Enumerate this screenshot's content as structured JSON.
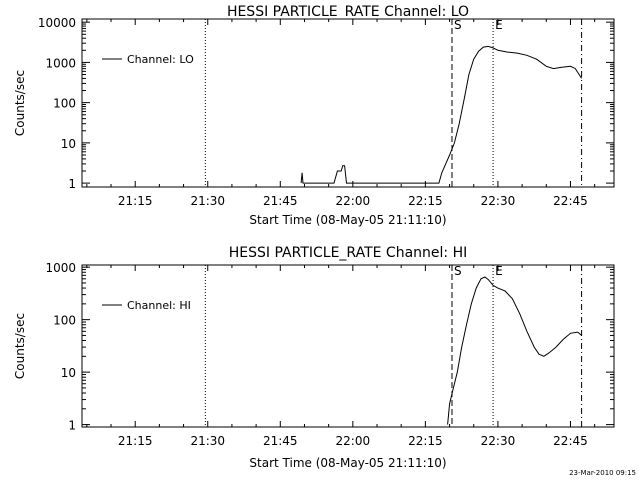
{
  "footer": {
    "timestamp": "23-Mar-2010 09:15"
  },
  "chart_data": [
    {
      "type": "line",
      "title": "HESSI PARTICLE_RATE Channel: LO",
      "xlabel": "Start Time (08-May-05 21:11:10)",
      "ylabel": "Counts/sec",
      "x_tick_labels": [
        "21:15",
        "21:30",
        "21:45",
        "22:00",
        "22:15",
        "22:30",
        "22:45"
      ],
      "x_tick_minutes": [
        15,
        30,
        45,
        60,
        75,
        90,
        105
      ],
      "xlim_minutes": [
        4,
        114
      ],
      "y_scale": "log",
      "y_tick_labels": [
        "1",
        "10",
        "100",
        "1000",
        "10000"
      ],
      "y_tick_values": [
        1,
        10,
        100,
        1000,
        10000
      ],
      "ylim": [
        0.8,
        12000
      ],
      "legend": {
        "entries": [
          "Channel: LO"
        ],
        "placement": "top-left"
      },
      "markers": [
        {
          "label": "",
          "minute": 29.5,
          "style": "dotted"
        },
        {
          "label": "S",
          "minute": 80.5,
          "style": "dashed"
        },
        {
          "label": "E",
          "minute": 89.0,
          "style": "dotted"
        },
        {
          "label": "",
          "minute": 107.3,
          "style": "dashdot"
        }
      ],
      "series": [
        {
          "name": "Channel: LO",
          "points": [
            [
              49.3,
              1
            ],
            [
              49.5,
              1.8
            ],
            [
              49.7,
              1
            ],
            [
              56.1,
              1
            ],
            [
              56.8,
              2.0
            ],
            [
              57.6,
              2.0
            ],
            [
              57.9,
              2.7
            ],
            [
              58.3,
              2.7
            ],
            [
              58.7,
              1
            ],
            [
              77.8,
              1
            ],
            [
              78.4,
              1.8
            ],
            [
              79.2,
              3.0
            ],
            [
              80.0,
              5.0
            ],
            [
              81.0,
              10
            ],
            [
              82.0,
              30
            ],
            [
              83.0,
              120
            ],
            [
              84.0,
              500
            ],
            [
              85.0,
              1200
            ],
            [
              86.0,
              1900
            ],
            [
              87.0,
              2400
            ],
            [
              88.0,
              2500
            ],
            [
              89.0,
              2300
            ],
            [
              90.0,
              2000
            ],
            [
              92.0,
              1800
            ],
            [
              94.0,
              1700
            ],
            [
              96.0,
              1500
            ],
            [
              98.0,
              1200
            ],
            [
              100.0,
              800
            ],
            [
              101.5,
              700
            ],
            [
              103.0,
              750
            ],
            [
              105.0,
              800
            ],
            [
              106.0,
              700
            ],
            [
              107.3,
              400
            ]
          ]
        }
      ]
    },
    {
      "type": "line",
      "title": "HESSI PARTICLE_RATE Channel: HI",
      "xlabel": "Start Time (08-May-05 21:11:10)",
      "ylabel": "Counts/sec",
      "x_tick_labels": [
        "21:15",
        "21:30",
        "21:45",
        "22:00",
        "22:15",
        "22:30",
        "22:45"
      ],
      "x_tick_minutes": [
        15,
        30,
        45,
        60,
        75,
        90,
        105
      ],
      "xlim_minutes": [
        4,
        114
      ],
      "y_scale": "log",
      "y_tick_labels": [
        "1",
        "10",
        "100",
        "1000"
      ],
      "y_tick_values": [
        1,
        10,
        100,
        1000
      ],
      "ylim": [
        0.9,
        1100
      ],
      "legend": {
        "entries": [
          "Channel: HI"
        ],
        "placement": "top-left"
      },
      "markers": [
        {
          "label": "",
          "minute": 29.5,
          "style": "dotted"
        },
        {
          "label": "S",
          "minute": 80.5,
          "style": "dashed"
        },
        {
          "label": "E",
          "minute": 89.0,
          "style": "dotted"
        },
        {
          "label": "",
          "minute": 107.3,
          "style": "dashdot"
        }
      ],
      "series": [
        {
          "name": "Channel: HI",
          "points": [
            [
              79.6,
              1
            ],
            [
              80.0,
              2.5
            ],
            [
              80.8,
              5
            ],
            [
              81.6,
              10
            ],
            [
              82.5,
              30
            ],
            [
              83.5,
              80
            ],
            [
              84.5,
              200
            ],
            [
              85.5,
              400
            ],
            [
              86.5,
              600
            ],
            [
              87.3,
              650
            ],
            [
              88.0,
              580
            ],
            [
              89.0,
              450
            ],
            [
              90.0,
              400
            ],
            [
              91.5,
              350
            ],
            [
              93.0,
              250
            ],
            [
              94.5,
              130
            ],
            [
              96.0,
              60
            ],
            [
              97.5,
              30
            ],
            [
              98.5,
              22
            ],
            [
              99.5,
              20
            ],
            [
              100.5,
              23
            ],
            [
              102.0,
              30
            ],
            [
              103.5,
              42
            ],
            [
              105.0,
              55
            ],
            [
              106.5,
              58
            ],
            [
              107.3,
              50
            ]
          ]
        }
      ]
    }
  ]
}
